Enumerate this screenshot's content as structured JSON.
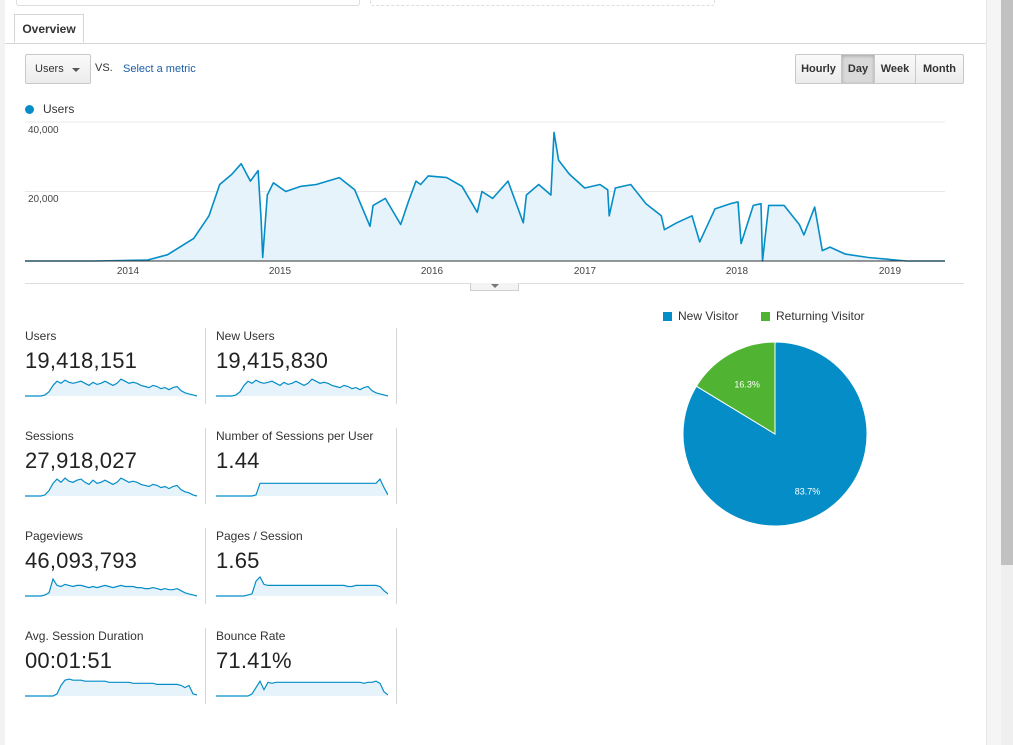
{
  "tabs": {
    "overview": "Overview"
  },
  "controls": {
    "metric_select": "Users",
    "vs": "VS.",
    "select_metric": "Select a metric",
    "period_buttons": [
      "Hourly",
      "Day",
      "Week",
      "Month"
    ],
    "active_period": "Day"
  },
  "colors": {
    "primary": "#058dc7",
    "secondary": "#50b432",
    "area_fill": "#e6f3fa",
    "link": "#1a5fa8"
  },
  "icons": {
    "metric_caret": "chevron-down-icon",
    "collapse": "caret-down-icon",
    "legend_marker": "circle-icon"
  },
  "chart_data": [
    {
      "type": "area",
      "legend": "Users",
      "y_ticks": [
        "40,000",
        "20,000"
      ],
      "x_ticks": [
        "2014",
        "2015",
        "2016",
        "2017",
        "2018",
        "2019"
      ],
      "ylim": [
        0,
        40000
      ],
      "grid": true,
      "x_range": [
        2013.35,
        2019.35
      ],
      "series": [
        {
          "name": "Users",
          "x": [
            2013.35,
            2013.8,
            2014.15,
            2014.28,
            2014.45,
            2014.55,
            2014.62,
            2014.7,
            2014.76,
            2014.82,
            2014.87,
            2014.89,
            2014.9,
            2014.93,
            2014.97,
            2015.05,
            2015.15,
            2015.25,
            2015.4,
            2015.5,
            2015.6,
            2015.62,
            2015.7,
            2015.8,
            2015.85,
            2015.9,
            2015.93,
            2015.98,
            2016.1,
            2016.2,
            2016.3,
            2016.33,
            2016.4,
            2016.5,
            2016.6,
            2016.62,
            2016.7,
            2016.78,
            2016.8,
            2016.83,
            2016.9,
            2017.0,
            2017.1,
            2017.15,
            2017.16,
            2017.2,
            2017.3,
            2017.4,
            2017.5,
            2017.52,
            2017.6,
            2017.7,
            2017.75,
            2017.85,
            2017.95,
            2018.0,
            2018.02,
            2018.1,
            2018.15,
            2018.16,
            2018.2,
            2018.3,
            2018.4,
            2018.43,
            2018.5,
            2018.55,
            2018.6,
            2018.7,
            2018.85,
            2019.1,
            2019.35
          ],
          "values": [
            0,
            0,
            300,
            1800,
            6500,
            13000,
            22000,
            25000,
            28000,
            23000,
            26000,
            12000,
            1000,
            19000,
            22500,
            20000,
            21500,
            22000,
            24000,
            20500,
            10000,
            16000,
            18000,
            10500,
            17000,
            23000,
            22000,
            24500,
            24000,
            21500,
            14000,
            20000,
            18000,
            23000,
            11000,
            19000,
            22000,
            19000,
            37000,
            29000,
            25000,
            21000,
            22000,
            20500,
            13000,
            21000,
            22000,
            16500,
            13000,
            9000,
            11000,
            13000,
            5500,
            15000,
            16500,
            17000,
            5000,
            16000,
            16500,
            0,
            16000,
            16000,
            10500,
            7500,
            15500,
            3000,
            4000,
            2000,
            1000,
            0,
            0
          ]
        }
      ]
    },
    {
      "type": "pie",
      "legend": [
        "New Visitor",
        "Returning Visitor"
      ],
      "values": [
        83.7,
        16.3
      ],
      "labels": [
        "83.7%",
        "16.3%"
      ],
      "colors": [
        "#058dc7",
        "#50b432"
      ]
    }
  ],
  "metrics": [
    {
      "label": "Users",
      "value": "19,418,151",
      "spark": [
        0,
        0,
        0,
        0,
        0,
        1,
        4,
        10,
        14,
        12,
        15,
        13,
        12,
        13,
        14,
        12,
        10,
        13,
        11,
        12,
        14,
        12,
        10,
        12,
        16,
        14,
        12,
        13,
        12,
        10,
        9,
        8,
        10,
        9,
        7,
        8,
        6,
        8,
        9,
        5,
        3,
        2,
        1,
        0
      ]
    },
    {
      "label": "New Users",
      "value": "19,415,830",
      "spark": [
        0,
        0,
        0,
        0,
        0,
        1,
        4,
        10,
        14,
        12,
        15,
        13,
        12,
        13,
        14,
        12,
        10,
        13,
        11,
        12,
        14,
        12,
        10,
        12,
        16,
        14,
        12,
        13,
        12,
        10,
        9,
        8,
        10,
        9,
        7,
        8,
        6,
        8,
        9,
        5,
        3,
        2,
        1,
        0
      ]
    },
    {
      "label": "Sessions",
      "value": "27,918,027",
      "spark": [
        0,
        0,
        0,
        0,
        0,
        1,
        5,
        12,
        16,
        13,
        17,
        14,
        13,
        15,
        16,
        13,
        11,
        15,
        12,
        13,
        15,
        13,
        11,
        13,
        17,
        15,
        13,
        14,
        13,
        11,
        10,
        9,
        11,
        10,
        8,
        9,
        7,
        9,
        10,
        6,
        4,
        3,
        1,
        0
      ]
    },
    {
      "label": "Number of Sessions per User",
      "value": "1.44",
      "spark": [
        0,
        0,
        0,
        0,
        0,
        0,
        0,
        0,
        0,
        0,
        1,
        12,
        12,
        12,
        12,
        12,
        12,
        12,
        12,
        12,
        12,
        12,
        12,
        12,
        12,
        12,
        12,
        12,
        12,
        12,
        12,
        12,
        12,
        12,
        12,
        12,
        12,
        12,
        12,
        12,
        12,
        16,
        8,
        1
      ]
    },
    {
      "label": "Pageviews",
      "value": "46,093,793",
      "spark": [
        0,
        0,
        0,
        0,
        0,
        1,
        3,
        16,
        10,
        9,
        11,
        10,
        9,
        10,
        10,
        9,
        8,
        9,
        8,
        9,
        10,
        9,
        8,
        9,
        10,
        9,
        9,
        9,
        8,
        8,
        7,
        7,
        8,
        7,
        6,
        7,
        6,
        6,
        7,
        5,
        3,
        2,
        1,
        0
      ]
    },
    {
      "label": "Pages / Session",
      "value": "1.65",
      "spark": [
        0,
        0,
        0,
        0,
        0,
        0,
        0,
        0,
        1,
        2,
        14,
        18,
        11,
        10,
        10,
        10,
        10,
        10,
        10,
        10,
        10,
        10,
        10,
        10,
        10,
        10,
        10,
        10,
        10,
        10,
        10,
        10,
        10,
        9,
        9,
        10,
        10,
        10,
        10,
        10,
        10,
        9,
        5,
        2
      ]
    },
    {
      "label": "Avg. Session Duration",
      "value": "00:01:51",
      "spark": [
        0,
        0,
        0,
        0,
        0,
        0,
        0,
        0,
        2,
        10,
        15,
        16,
        15,
        15,
        15,
        14,
        14,
        14,
        14,
        14,
        14,
        13,
        13,
        13,
        13,
        13,
        13,
        12,
        12,
        12,
        12,
        12,
        12,
        11,
        11,
        11,
        11,
        11,
        11,
        10,
        8,
        10,
        2,
        1
      ]
    },
    {
      "label": "Bounce Rate",
      "value": "71.41%",
      "spark": [
        0,
        0,
        0,
        0,
        0,
        0,
        0,
        0,
        0,
        2,
        8,
        14,
        6,
        13,
        12,
        13,
        13,
        13,
        13,
        13,
        13,
        13,
        13,
        13,
        13,
        13,
        13,
        13,
        13,
        13,
        13,
        13,
        13,
        13,
        13,
        13,
        13,
        12,
        13,
        13,
        14,
        12,
        4,
        1
      ]
    }
  ]
}
